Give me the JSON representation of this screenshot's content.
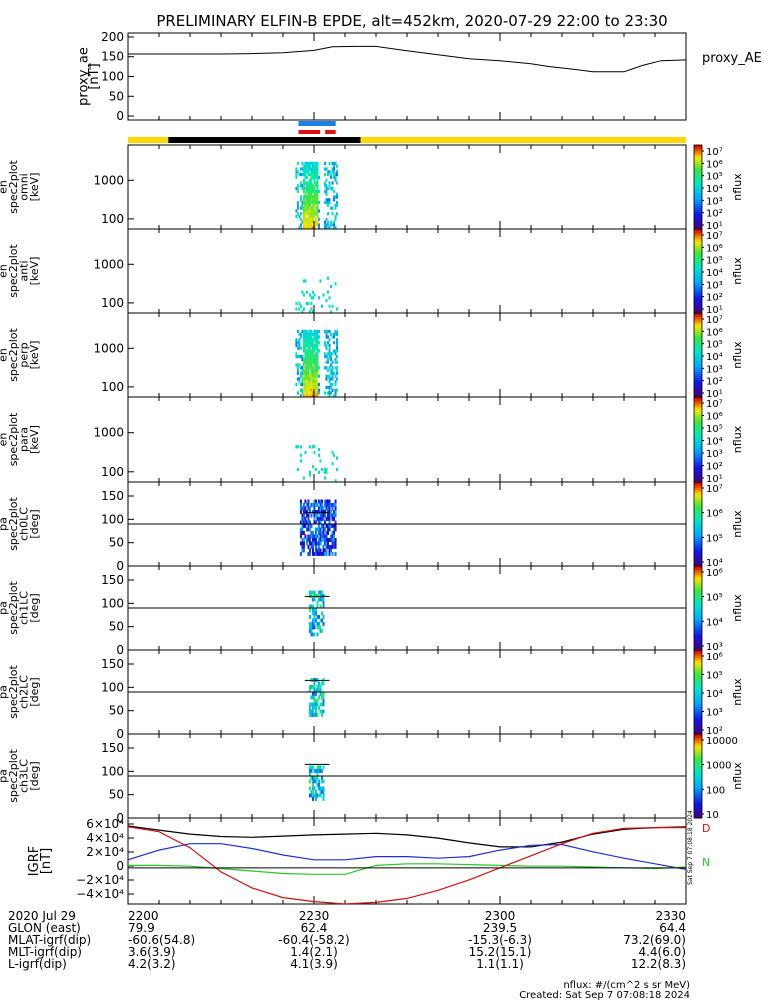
{
  "title": "PRELIMINARY ELFIN-B EPDE, alt=452km, 2020-07-29 22:00 to 23:30",
  "colors": {
    "axis": "#000000",
    "bar_yellow": "#ffd800",
    "bar_black": "#000000",
    "marker_blue": "#1e7fe6",
    "marker_red": "#e01010",
    "gsm_x": "#000000",
    "gsm_y": "#1f2fd0",
    "gsm_z": "#28c828",
    "gsm_red": "#d01010"
  },
  "footer": {
    "units": "nflux: #/(cm^2 s sr MeV)",
    "created": "Created: Sat Sep  7 07:08:18 2024",
    "side_stamp": "Sat Sep  7 07:08:18 2024"
  },
  "chart_data": [
    {
      "type": "line",
      "id": "proxy_ae",
      "ylabel": "proxy_ae\n[nT]",
      "legend": "proxy_AE",
      "yticks": [
        "200",
        "150",
        "100",
        "50",
        "0"
      ],
      "ylim": [
        -10,
        210
      ],
      "x_minutes": [
        0,
        15,
        20,
        25,
        30,
        33,
        37,
        40,
        45,
        50,
        55,
        60,
        65,
        68,
        72,
        75,
        80,
        83,
        86,
        90
      ],
      "values": [
        157,
        157,
        158,
        160,
        166,
        175,
        176,
        176,
        165,
        155,
        145,
        140,
        132,
        125,
        118,
        112,
        112,
        128,
        140,
        142
      ]
    },
    {
      "type": "heatmap",
      "id": "en_omni",
      "ylabel": "elb\npef\nen\nspec2plot\nomni\n[keV]",
      "yticks": [
        "1000",
        "100"
      ],
      "scale": "log",
      "colorbar": {
        "label": "nflux",
        "ticks": [
          "10⁷",
          "10⁶",
          "10⁵",
          "10⁴",
          "10³",
          "10²",
          "10¹"
        ]
      }
    },
    {
      "type": "heatmap",
      "id": "en_anti",
      "ylabel": "elb\npef\nen\nspec2plot\nanti\n[keV]",
      "yticks": [
        "1000",
        "100"
      ],
      "scale": "log",
      "colorbar": {
        "label": "nflux",
        "ticks": [
          "10⁷",
          "10⁶",
          "10⁵",
          "10⁴",
          "10³",
          "10²",
          "10¹"
        ]
      }
    },
    {
      "type": "heatmap",
      "id": "en_perp",
      "ylabel": "elb\npef\nen\nspec2plot\nperp\n[keV]",
      "yticks": [
        "1000",
        "100"
      ],
      "scale": "log",
      "colorbar": {
        "label": "nflux",
        "ticks": [
          "10⁷",
          "10⁶",
          "10⁵",
          "10⁴",
          "10³",
          "10²",
          "10¹"
        ]
      }
    },
    {
      "type": "heatmap",
      "id": "en_para",
      "ylabel": "elb\npef\nen\nspec2plot\npara\n[keV]",
      "yticks": [
        "1000",
        "100"
      ],
      "scale": "log",
      "colorbar": {
        "label": "nflux",
        "ticks": [
          "10⁷",
          "10⁶",
          "10⁵",
          "10⁴",
          "10³",
          "10²",
          "10¹"
        ]
      }
    },
    {
      "type": "heatmap",
      "id": "pa_ch0",
      "ylabel": "elb\npef\npa\nspec2plot\nch0LC\n[deg]",
      "yticks": [
        "150",
        "100",
        "50",
        "0"
      ],
      "ylim": [
        0,
        180
      ],
      "colorbar": {
        "label": "nflux",
        "ticks": [
          "10⁷",
          "10⁶",
          "10⁵",
          "10⁴"
        ]
      }
    },
    {
      "type": "heatmap",
      "id": "pa_ch1",
      "ylabel": "elb\npef\npa\nspec2plot\nch1LC\n[deg]",
      "yticks": [
        "150",
        "100",
        "50",
        "0"
      ],
      "ylim": [
        0,
        180
      ],
      "colorbar": {
        "label": "nflux",
        "ticks": [
          "10⁶",
          "10⁵",
          "10⁴",
          "10³"
        ]
      }
    },
    {
      "type": "heatmap",
      "id": "pa_ch2",
      "ylabel": "elb\npef\npa\nspec2plot\nch2LC\n[deg]",
      "yticks": [
        "150",
        "100",
        "50",
        "0"
      ],
      "ylim": [
        0,
        180
      ],
      "colorbar": {
        "label": "nflux",
        "ticks": [
          "10⁶",
          "10⁵",
          "10⁴",
          "10³",
          "10²"
        ]
      }
    },
    {
      "type": "heatmap",
      "id": "pa_ch3",
      "ylabel": "elb\npef\npa\nspec2plot\nch3LC\n[deg]",
      "yticks": [
        "150",
        "100",
        "50",
        "0"
      ],
      "ylim": [
        0,
        180
      ],
      "colorbar": {
        "label": "nflux",
        "ticks": [
          "10000",
          "1000",
          "100",
          "10"
        ]
      }
    },
    {
      "type": "line",
      "id": "igrf",
      "ylabel": "IGRF\n[nT]",
      "yticks": [
        "6×10⁴",
        "4×10⁴",
        "2×10⁴",
        "0",
        "−2×10⁴",
        "−4×10⁴"
      ],
      "ylim": [
        -45000,
        62000
      ],
      "legend_labels": [
        "D",
        "N"
      ],
      "x_minutes": [
        0,
        5,
        10,
        15,
        20,
        25,
        30,
        35,
        40,
        45,
        50,
        55,
        60,
        65,
        70,
        75,
        80,
        85,
        90
      ],
      "series": [
        {
          "color_key": "gsm_x",
          "values": [
            52000,
            47000,
            42000,
            39000,
            38000,
            39500,
            41000,
            42000,
            43000,
            41000,
            37000,
            31000,
            26000,
            26000,
            32000,
            42000,
            48000,
            50000,
            51000
          ]
        },
        {
          "color_key": "gsm_y",
          "values": [
            10000,
            22000,
            30000,
            30000,
            24000,
            16000,
            10000,
            10000,
            14000,
            14000,
            12000,
            14000,
            22000,
            28000,
            29000,
            20000,
            12000,
            5000,
            -2000
          ]
        },
        {
          "color_key": "gsm_z",
          "values": [
            3000,
            3000,
            2000,
            -1000,
            -4000,
            -7000,
            -8000,
            -8000,
            3000,
            5000,
            5000,
            4000,
            3000,
            2000,
            2000,
            1000,
            0,
            -1000,
            1000
          ]
        },
        {
          "color_key": "gsm_red",
          "values": [
            51000,
            45000,
            25000,
            -5000,
            -25000,
            -37000,
            -42000,
            -45000,
            -43000,
            -38000,
            -28000,
            -15000,
            0,
            15000,
            30000,
            43000,
            49000,
            50000,
            50000
          ]
        }
      ]
    }
  ],
  "axis_table": {
    "rows": [
      {
        "label": "2020 Jul 29",
        "values": [
          "2200",
          "2230",
          "2300",
          "2330"
        ]
      },
      {
        "label": "GLON (east)",
        "values": [
          "79.9",
          "62.4",
          "239.5",
          "64.4"
        ]
      },
      {
        "label": "MLAT-igrf(dip)",
        "values": [
          "-60.6(54.8)",
          "-60.4(-58.2)",
          "-15.3(-6.3)",
          "73.2(69.0)"
        ]
      },
      {
        "label": "MLT-igrf(dip)",
        "values": [
          "3.6(3.9)",
          "1.4(2.1)",
          "15.2(15.1)",
          "4.4(6.0)"
        ]
      },
      {
        "label": "L-igrf(dip)",
        "values": [
          "4.2(3.2)",
          "4.1(3.9)",
          "1.1(1.1)",
          "12.2(8.3)"
        ]
      }
    ]
  }
}
